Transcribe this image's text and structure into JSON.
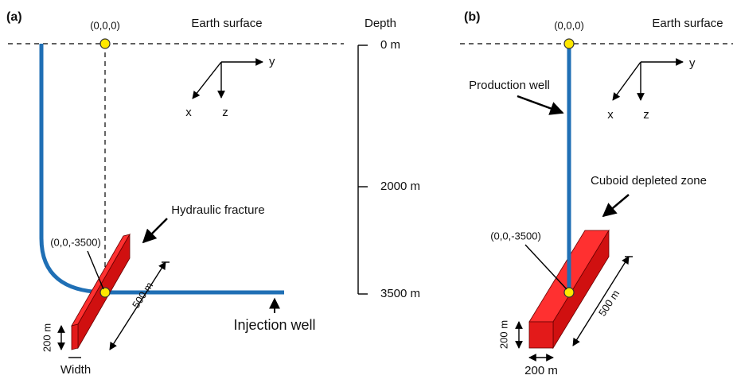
{
  "panel_a": {
    "label": "(a)",
    "origin": "(0,0,0)",
    "surface": "Earth surface",
    "axes": {
      "x": "x",
      "y": "y",
      "z": "z"
    },
    "fracture": "Hydraulic fracture",
    "point": "(0,0,-3500)",
    "length": "500 m",
    "height": "200 m",
    "width": "Width",
    "well": "Injection well"
  },
  "depth_scale": {
    "title": "Depth",
    "labels": [
      "0 m",
      "2000 m",
      "3500 m"
    ]
  },
  "panel_b": {
    "label": "(b)",
    "origin": "(0,0,0)",
    "surface": "Earth surface",
    "axes": {
      "x": "x",
      "y": "y",
      "z": "z"
    },
    "well": "Production well",
    "zone": "Cuboid depleted zone",
    "point": "(0,0,-3500)",
    "length": "500 m",
    "height": "200 m",
    "width": "200 m"
  }
}
